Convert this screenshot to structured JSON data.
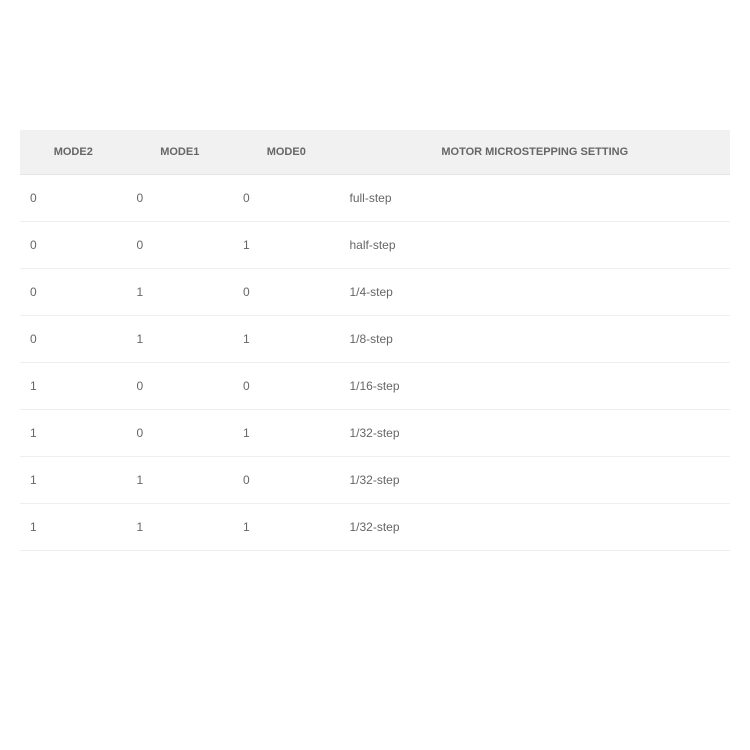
{
  "table": {
    "type": "table",
    "background_color": "#ffffff",
    "header_background_color": "#f1f1f1",
    "header_text_color": "#666666",
    "cell_text_color": "#666666",
    "border_color": "#eeeeee",
    "header_fontsize": 11,
    "cell_fontsize": 12,
    "columns": [
      {
        "label": "MODE2",
        "width_pct": 15,
        "align": "center"
      },
      {
        "label": "MODE1",
        "width_pct": 15,
        "align": "center"
      },
      {
        "label": "MODE0",
        "width_pct": 15,
        "align": "center"
      },
      {
        "label": "MOTOR MICROSTEPPING SETTING",
        "width_pct": 55,
        "align": "center"
      }
    ],
    "rows": [
      [
        "0",
        "0",
        "0",
        "full-step"
      ],
      [
        "0",
        "0",
        "1",
        "half-step"
      ],
      [
        "0",
        "1",
        "0",
        "1/4-step"
      ],
      [
        "0",
        "1",
        "1",
        "1/8-step"
      ],
      [
        "1",
        "0",
        "0",
        "1/16-step"
      ],
      [
        "1",
        "0",
        "1",
        "1/32-step"
      ],
      [
        "1",
        "1",
        "0",
        "1/32-step"
      ],
      [
        "1",
        "1",
        "1",
        "1/32-step"
      ]
    ]
  }
}
